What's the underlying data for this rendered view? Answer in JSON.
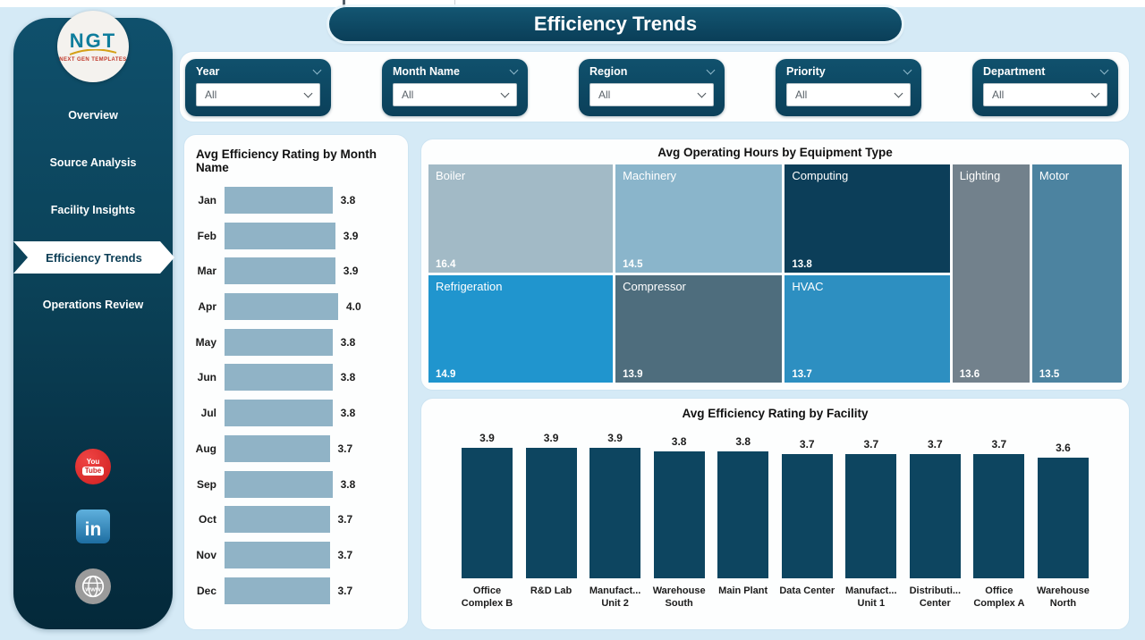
{
  "header": {
    "title": "Efficiency Trends"
  },
  "sidebar": {
    "logo_text": "NGT",
    "logo_subtext": "NEXT GEN TEMPLATES",
    "nav_items": [
      {
        "label": "Overview",
        "active": false
      },
      {
        "label": "Source Analysis",
        "active": false
      },
      {
        "label": "Facility Insights",
        "active": false
      },
      {
        "label": "Efficiency Trends",
        "active": true
      },
      {
        "label": "Operations Review",
        "active": false
      }
    ],
    "social_icons": [
      "youtube-icon",
      "linkedin-icon",
      "website-globe-icon"
    ],
    "linkedin_glyph": "in",
    "youtube_line1": "You",
    "youtube_line2": "Tube"
  },
  "filters": {
    "items": [
      {
        "label": "Year",
        "value": "All"
      },
      {
        "label": "Month Name",
        "value": "All"
      },
      {
        "label": "Region",
        "value": "All"
      },
      {
        "label": "Priority",
        "value": "All"
      },
      {
        "label": "Department",
        "value": "All"
      }
    ]
  },
  "chart_data": [
    {
      "id": "monthly_efficiency",
      "type": "bar",
      "orientation": "horizontal",
      "title": "Avg Efficiency Rating by Month Name",
      "categories": [
        "Jan",
        "Feb",
        "Mar",
        "Apr",
        "May",
        "Jun",
        "Jul",
        "Aug",
        "Sep",
        "Oct",
        "Nov",
        "Dec"
      ],
      "values": [
        3.8,
        3.9,
        3.9,
        4.0,
        3.8,
        3.8,
        3.8,
        3.7,
        3.8,
        3.7,
        3.7,
        3.7
      ],
      "xlim": [
        0,
        4.0
      ],
      "bar_color": "#90b3c6",
      "data_labels": true,
      "grid": false
    },
    {
      "id": "operating_hours_treemap",
      "type": "heatmap",
      "subtype": "treemap",
      "title": "Avg Operating Hours by Equipment Type",
      "items": [
        {
          "label": "Boiler",
          "value": 16.4,
          "color": "#a2bac6",
          "area": "boiler"
        },
        {
          "label": "Machinery",
          "value": 14.5,
          "color": "#8ab5cb",
          "area": "machinery"
        },
        {
          "label": "Computing",
          "value": 13.8,
          "color": "#0c3e59",
          "area": "computing"
        },
        {
          "label": "Refrigeration",
          "value": 14.9,
          "color": "#2095ce",
          "area": "refrigeration"
        },
        {
          "label": "Compressor",
          "value": 13.9,
          "color": "#4e6d7d",
          "area": "compressor"
        },
        {
          "label": "HVAC",
          "value": 13.7,
          "color": "#2d8fc1",
          "area": "hvac"
        },
        {
          "label": "Lighting",
          "value": 13.6,
          "color": "#72818c",
          "area": "lighting"
        },
        {
          "label": "Motor",
          "value": 13.5,
          "color": "#4c83a0",
          "area": "motor"
        }
      ]
    },
    {
      "id": "facility_efficiency",
      "type": "bar",
      "orientation": "vertical",
      "title": "Avg Efficiency Rating by Facility",
      "categories": [
        "Office Complex B",
        "R&D Lab",
        "Manufact... Unit 2",
        "Warehouse South",
        "Main Plant",
        "Data Center",
        "Manufact... Unit 1",
        "Distributi... Center",
        "Office Complex A",
        "Warehouse North"
      ],
      "values": [
        3.9,
        3.9,
        3.9,
        3.8,
        3.8,
        3.7,
        3.7,
        3.7,
        3.7,
        3.6
      ],
      "ylim": [
        0,
        4.0
      ],
      "bar_color": "#0d4560",
      "data_labels": true,
      "grid": false
    }
  ],
  "colors": {
    "background": "#d5eaf6",
    "panel_dark": "#0d4a63",
    "card_border": "#cde4f2",
    "monthly_bar": "#90b3c6",
    "facility_bar": "#0d4560"
  }
}
